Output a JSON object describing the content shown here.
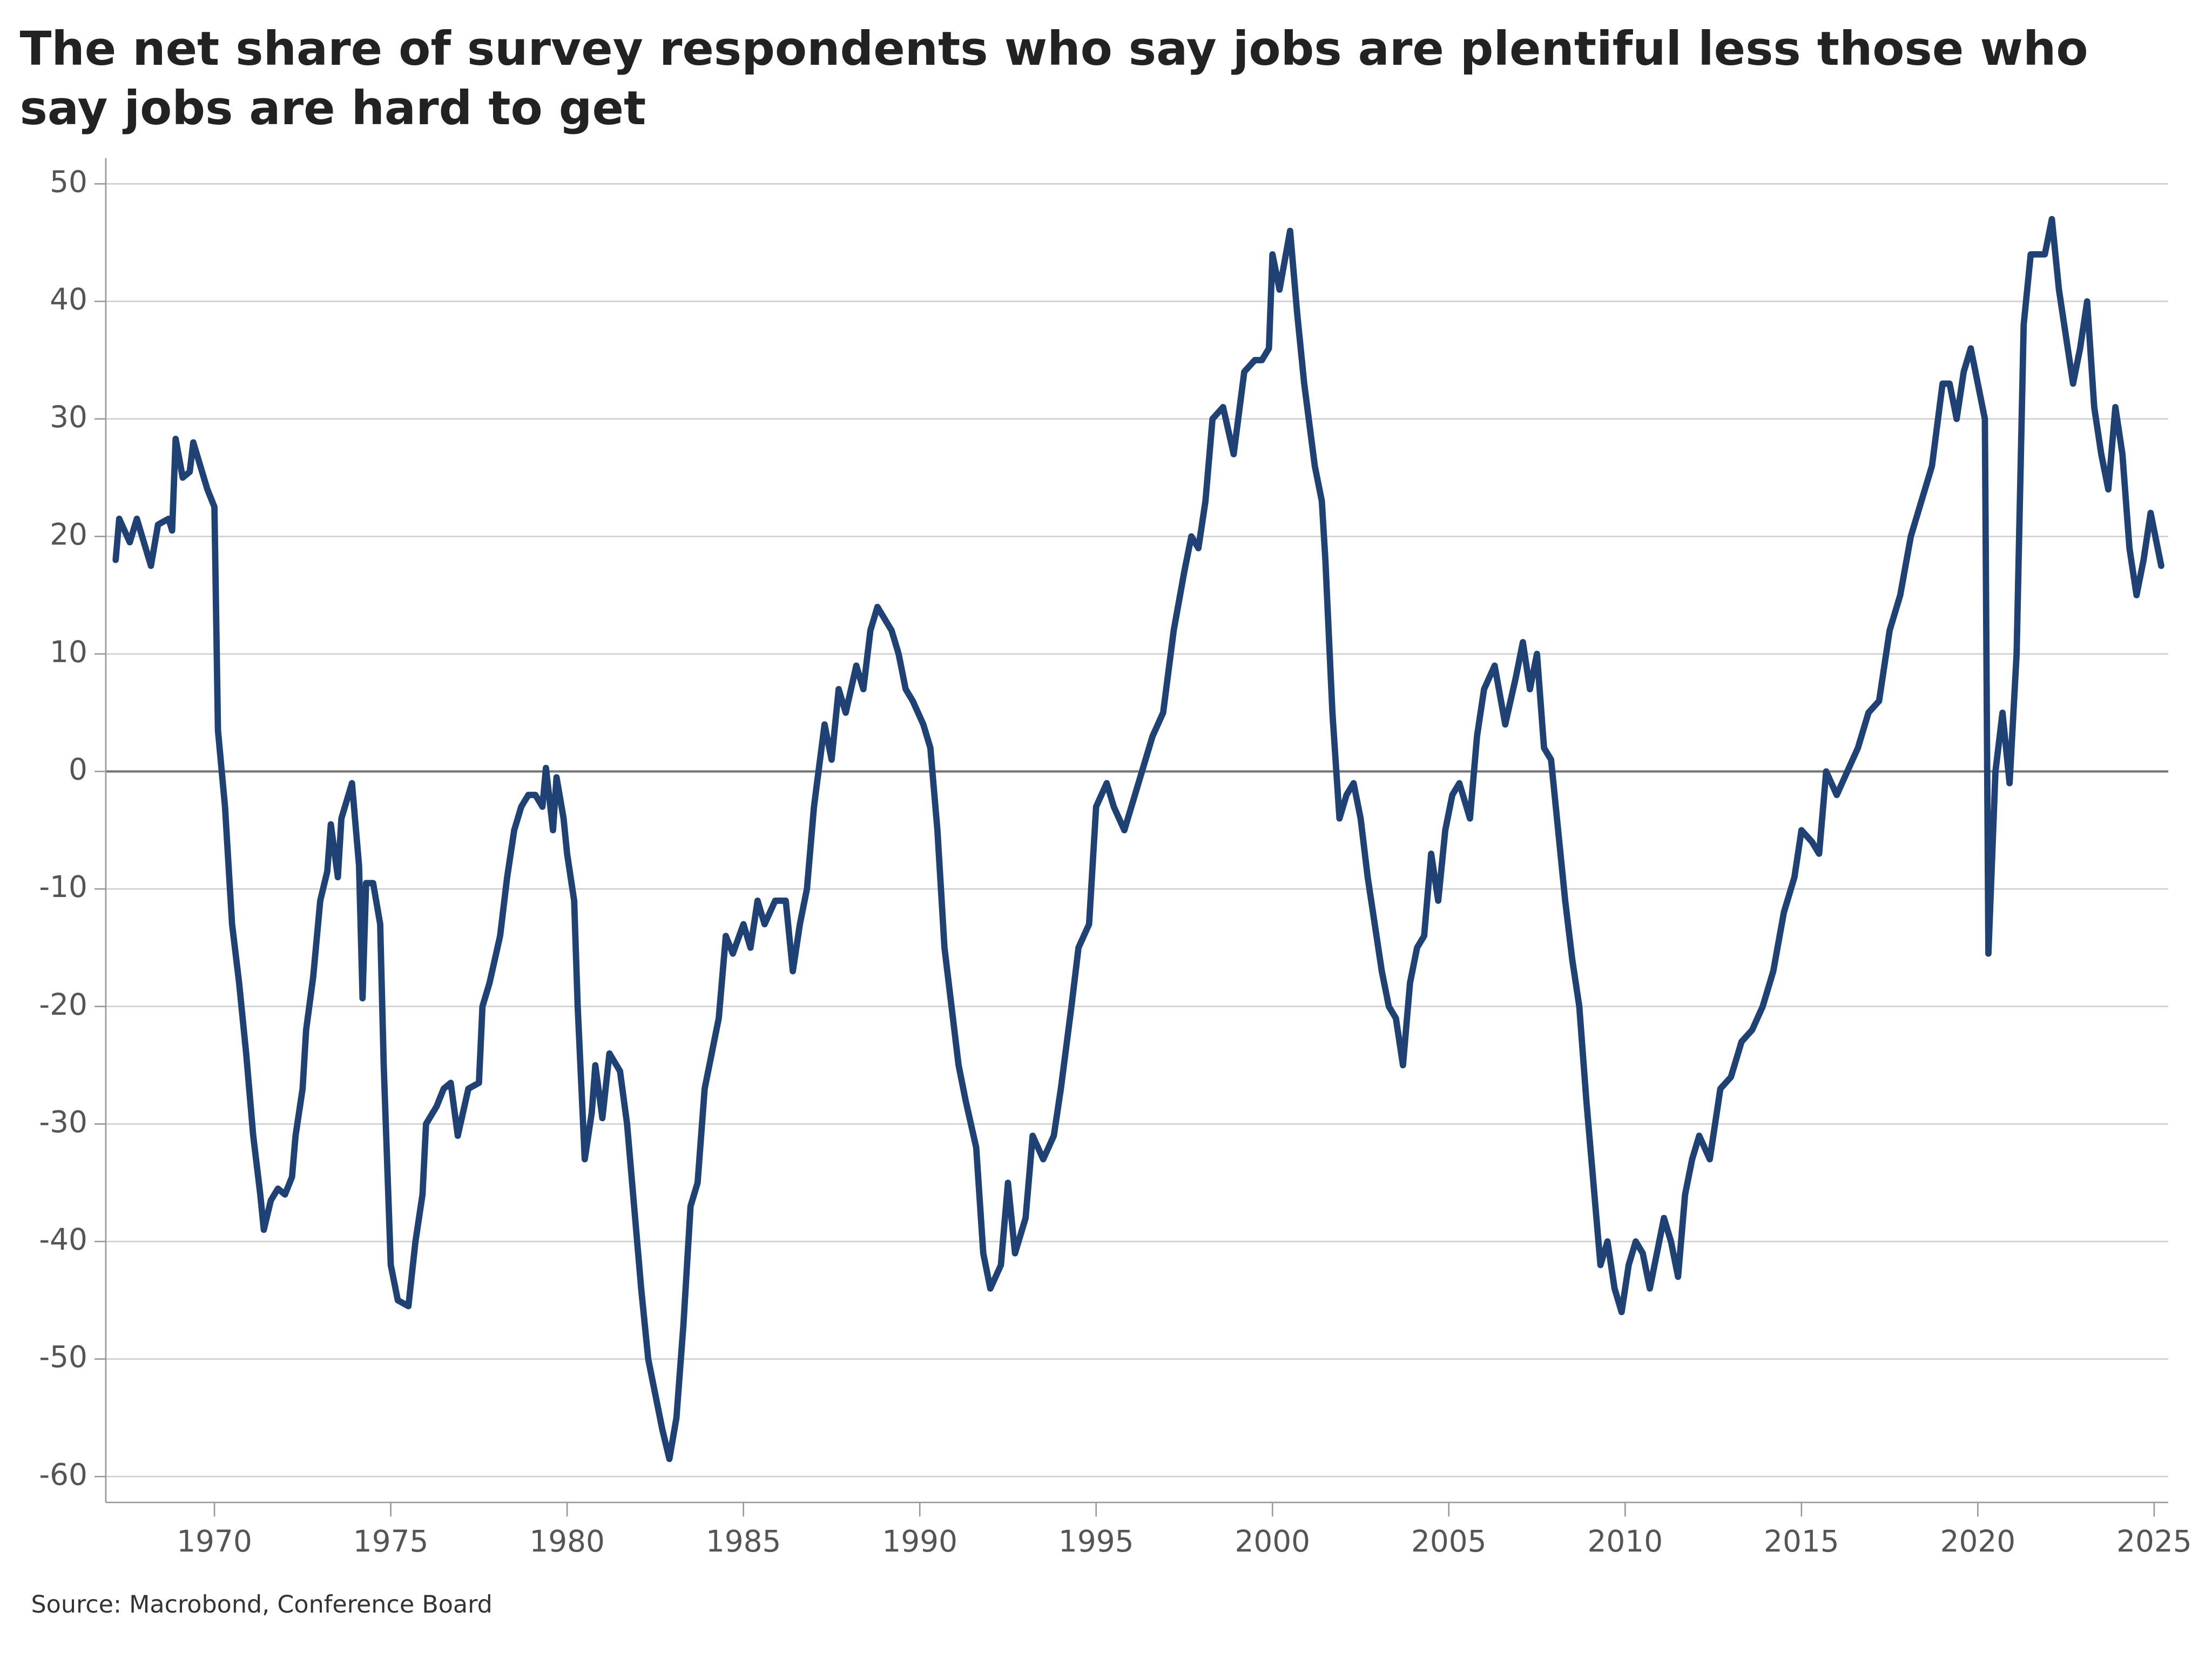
{
  "chart_data": {
    "type": "line",
    "title": "The net share of survey respondents who say jobs are plentiful less those who say jobs are hard to get",
    "source": "Source: Macrobond, Conference Board",
    "xlim": [
      1966.92,
      2025.4
    ],
    "xticks": [
      1970,
      1975,
      1980,
      1985,
      1990,
      1995,
      2000,
      2005,
      2010,
      2015,
      2020,
      2025
    ],
    "ylim": [
      -62.2,
      52.2
    ],
    "yticks": [
      -60,
      -50,
      -40,
      -30,
      -20,
      -10,
      0,
      10,
      20,
      30,
      40,
      50
    ],
    "grid": true,
    "series": [
      {
        "color": "#1f4173",
        "x": [
          1967.2,
          1967.3,
          1967.6,
          1967.8,
          1968.0,
          1968.2,
          1968.4,
          1968.7,
          1968.8,
          1968.9,
          1969.1,
          1969.3,
          1969.4,
          1969.6,
          1969.8,
          1970.0,
          1970.1,
          1970.3,
          1970.5,
          1970.7,
          1970.9,
          1971.1,
          1971.3,
          1971.4,
          1971.6,
          1971.8,
          1972.0,
          1972.2,
          1972.3,
          1972.5,
          1972.6,
          1972.8,
          1973.0,
          1973.2,
          1973.3,
          1973.5,
          1973.6,
          1973.8,
          1973.9,
          1974.1,
          1974.2,
          1974.3,
          1974.5,
          1974.7,
          1974.8,
          1975.0,
          1975.2,
          1975.5,
          1975.7,
          1975.9,
          1976.0,
          1976.3,
          1976.5,
          1976.7,
          1976.9,
          1977.2,
          1977.5,
          1977.6,
          1977.8,
          1978.1,
          1978.3,
          1978.5,
          1978.7,
          1978.9,
          1979.1,
          1979.3,
          1979.4,
          1979.6,
          1979.7,
          1979.9,
          1980.0,
          1980.2,
          1980.3,
          1980.5,
          1980.7,
          1980.8,
          1981.0,
          1981.2,
          1981.5,
          1981.7,
          1981.9,
          1982.1,
          1982.3,
          1982.5,
          1982.7,
          1982.9,
          1983.1,
          1983.3,
          1983.5,
          1983.7,
          1983.9,
          1984.1,
          1984.3,
          1984.5,
          1984.7,
          1985.0,
          1985.2,
          1985.4,
          1985.6,
          1985.9,
          1986.2,
          1986.4,
          1986.6,
          1986.8,
          1987.0,
          1987.3,
          1987.5,
          1987.7,
          1987.9,
          1988.2,
          1988.4,
          1988.6,
          1988.8,
          1989.0,
          1989.2,
          1989.4,
          1989.6,
          1989.8,
          1990.1,
          1990.3,
          1990.5,
          1990.7,
          1990.9,
          1991.1,
          1991.3,
          1991.6,
          1991.8,
          1992.0,
          1992.3,
          1992.5,
          1992.7,
          1993.0,
          1993.2,
          1993.5,
          1993.8,
          1994.0,
          1994.3,
          1994.5,
          1994.8,
          1995.0,
          1995.3,
          1995.5,
          1995.8,
          1996.0,
          1996.3,
          1996.6,
          1996.9,
          1997.2,
          1997.5,
          1997.7,
          1997.9,
          1998.1,
          1998.3,
          1998.6,
          1998.9,
          1999.2,
          1999.5,
          1999.7,
          1999.9,
          2000.0,
          2000.2,
          2000.5,
          2000.7,
          2000.9,
          2001.2,
          2001.4,
          2001.5,
          2001.7,
          2001.9,
          2002.1,
          2002.3,
          2002.5,
          2002.7,
          2002.9,
          2003.1,
          2003.3,
          2003.5,
          2003.7,
          2003.9,
          2004.1,
          2004.3,
          2004.5,
          2004.7,
          2004.9,
          2005.1,
          2005.3,
          2005.6,
          2005.8,
          2006.0,
          2006.3,
          2006.6,
          2006.9,
          2007.1,
          2007.3,
          2007.5,
          2007.7,
          2007.9,
          2008.1,
          2008.3,
          2008.5,
          2008.7,
          2008.9,
          2009.1,
          2009.3,
          2009.5,
          2009.7,
          2009.9,
          2010.1,
          2010.3,
          2010.5,
          2010.7,
          2010.9,
          2011.1,
          2011.3,
          2011.5,
          2011.7,
          2011.9,
          2012.1,
          2012.4,
          2012.7,
          2013.0,
          2013.3,
          2013.6,
          2013.9,
          2014.2,
          2014.5,
          2014.8,
          2015.0,
          2015.3,
          2015.5,
          2015.7,
          2016.0,
          2016.3,
          2016.6,
          2016.9,
          2017.2,
          2017.5,
          2017.8,
          2018.1,
          2018.4,
          2018.7,
          2019.0,
          2019.2,
          2019.4,
          2019.6,
          2019.8,
          2020.0,
          2020.2,
          2020.3,
          2020.5,
          2020.7,
          2020.9,
          2021.1,
          2021.3,
          2021.5,
          2021.7,
          2021.9,
          2022.1,
          2022.3,
          2022.5,
          2022.7,
          2022.9,
          2023.1,
          2023.3,
          2023.5,
          2023.7,
          2023.9,
          2024.1,
          2024.3,
          2024.5,
          2024.7,
          2024.9,
          2025.2
        ],
        "values": [
          18,
          21.5,
          19.5,
          21.5,
          19.5,
          17.5,
          21,
          21.5,
          20.5,
          28.3,
          25,
          25.5,
          28,
          26,
          24,
          22.5,
          3.5,
          -3,
          -13,
          -18,
          -24,
          -31,
          -36,
          -39,
          -36.5,
          -35.5,
          -36,
          -34.5,
          -31,
          -27,
          -22,
          -17.5,
          -11,
          -8.5,
          -4.5,
          -9,
          -4,
          -2,
          -1,
          -8,
          -19.3,
          -9.5,
          -9.5,
          -13,
          -25,
          -42,
          -45,
          -45.5,
          -40,
          -36,
          -30,
          -28.5,
          -27,
          -26.5,
          -31,
          -27,
          -26.5,
          -20,
          -18,
          -14,
          -9,
          -5,
          -3,
          -2,
          -2,
          -3,
          0.3,
          -5,
          -0.5,
          -4,
          -7,
          -11,
          -20,
          -33,
          -29,
          -25,
          -29.5,
          -24,
          -25.5,
          -30,
          -37,
          -44,
          -50,
          -53,
          -56,
          -58.5,
          -55,
          -47,
          -37,
          -35,
          -27,
          -24,
          -21,
          -14,
          -15.5,
          -13,
          -15,
          -11,
          -13,
          -11,
          -11,
          -17,
          -13,
          -10,
          -3,
          4,
          1,
          7,
          5,
          9,
          7,
          12,
          14,
          13,
          12,
          10,
          7,
          6,
          4,
          2,
          -5,
          -15,
          -20,
          -25,
          -28,
          -32,
          -41,
          -44,
          -42,
          -35,
          -41,
          -38,
          -31,
          -33,
          -31,
          -27,
          -20,
          -15,
          -13,
          -3,
          -1,
          -3,
          -5,
          -3,
          0,
          3,
          5,
          12,
          17,
          20,
          19,
          23,
          30,
          31,
          27,
          34,
          35,
          35,
          36,
          44,
          41,
          46,
          39,
          33,
          26,
          23,
          18,
          5,
          -4,
          -2,
          -1,
          -4,
          -9,
          -13,
          -17,
          -20,
          -21,
          -25,
          -18,
          -15,
          -14,
          -7,
          -11,
          -5,
          -2,
          -1,
          -4,
          3,
          7,
          9,
          4,
          8,
          11,
          7,
          10,
          2,
          1,
          -5,
          -11,
          -16,
          -20,
          -28,
          -35,
          -42,
          -40,
          -44,
          -46,
          -42,
          -40,
          -41,
          -44,
          -41,
          -38,
          -40,
          -43,
          -36,
          -33,
          -31,
          -33,
          -27,
          -26,
          -23,
          -22,
          -20,
          -17,
          -12,
          -9,
          -5,
          -6,
          -7,
          0,
          -2,
          0,
          2,
          5,
          6,
          12,
          15,
          20,
          23,
          26,
          33,
          33,
          30,
          34,
          36,
          33,
          30,
          -15.5,
          0,
          5,
          -1,
          10,
          38,
          44,
          44,
          44,
          47,
          41,
          37,
          33,
          36,
          40,
          31,
          27,
          24,
          31,
          27,
          19,
          15,
          18,
          22,
          17.5
        ]
      }
    ]
  }
}
